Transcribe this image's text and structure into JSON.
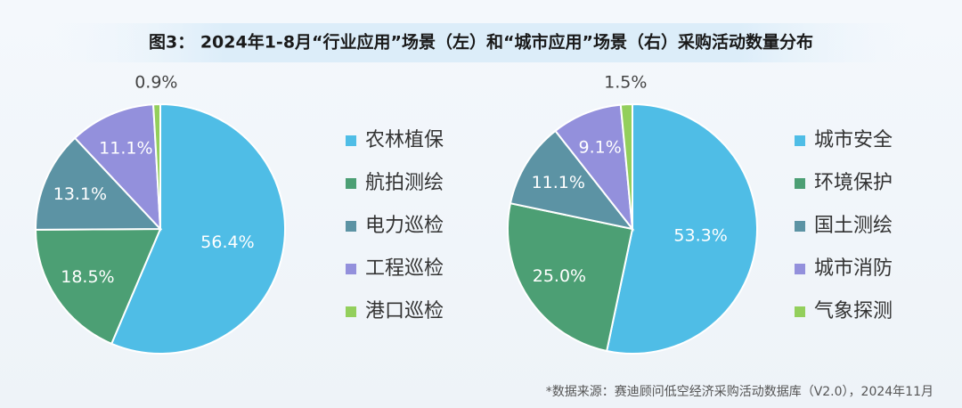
{
  "title": "图3：  2024年1-8月“行业应用”场景（左）和“城市应用”场景（右）采购活动数量分布",
  "note": "*数据来源：赛迪顾问低空经济采购活动数据库（V2.0），2024年11月",
  "chart_data": [
    {
      "type": "pie",
      "categories": [
        "农林植保",
        "航拍测绘",
        "电力巡检",
        "工程巡检",
        "港口巡检"
      ],
      "values": [
        56.4,
        18.5,
        13.1,
        11.1,
        0.9
      ],
      "value_labels": [
        "56.4%",
        "18.5%",
        "13.1%",
        "11.1%",
        "0.9%"
      ],
      "colors": [
        "#4fbde6",
        "#4c9f74",
        "#5c93a4",
        "#9390dc",
        "#93cf5c"
      ]
    },
    {
      "type": "pie",
      "categories": [
        "城市安全",
        "环境保护",
        "国土测绘",
        "城市消防",
        "气象探测"
      ],
      "values": [
        53.3,
        25.0,
        11.1,
        9.1,
        1.5
      ],
      "value_labels": [
        "53.3%",
        "25.0%",
        "11.1%",
        "9.1%",
        "1.5%"
      ],
      "colors": [
        "#4fbde6",
        "#4c9f74",
        "#5c93a4",
        "#9390dc",
        "#93cf5c"
      ]
    }
  ]
}
